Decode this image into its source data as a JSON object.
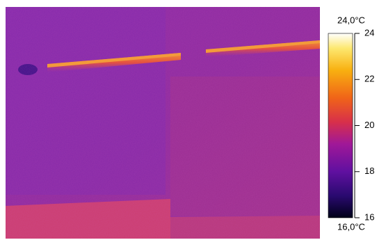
{
  "colorbar": {
    "max_label": "24,0°C",
    "min_label": "16,0°C",
    "range": [
      16,
      24
    ],
    "ticks": [
      16,
      18,
      20,
      22,
      24
    ]
  }
}
